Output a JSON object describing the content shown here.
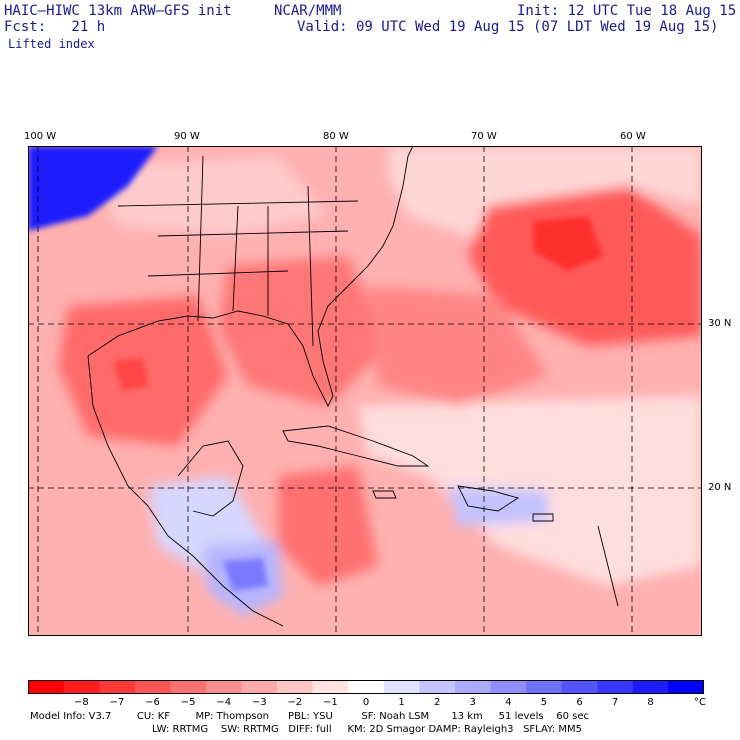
{
  "header": {
    "model": "HAIC–HIWC 13km ARW–GFS init",
    "org": "NCAR/MMM",
    "init": "Init: 12 UTC Tue 18 Aug 15",
    "fcst": "Fcst:   21 h",
    "valid": "Valid: 09 UTC Wed 19 Aug 15 (07 LDT Wed 19 Aug 15)",
    "field": "Lifted index"
  },
  "axes": {
    "lon_labels": [
      "100 W",
      "90 W",
      "80 W",
      "70 W",
      "60 W"
    ],
    "lat_labels": [
      "30 N",
      "20 N"
    ]
  },
  "colorbar": {
    "labels": [
      "−8",
      "−7",
      "−6",
      "−5",
      "−4",
      "−3",
      "−2",
      "−1",
      "0",
      "1",
      "2",
      "3",
      "4",
      "5",
      "6",
      "7",
      "8"
    ],
    "unit": "°C",
    "colors": [
      "#ff0000",
      "#ff1c1c",
      "#ff3838",
      "#ff5555",
      "#ff7171",
      "#ff8e8e",
      "#ffaaaa",
      "#ffc6c6",
      "#ffe3e3",
      "#ffffff",
      "#e3e3ff",
      "#c6c6ff",
      "#aaaaff",
      "#8e8eff",
      "#7171ff",
      "#5555ff",
      "#3838ff",
      "#1c1cff",
      "#0000ff"
    ]
  },
  "model_info": {
    "line1": "Model Info: V3.7        CU: KF        MP: Thompson      PBL: YSU         SF: Noah LSM       13 km     51 levels    60 sec",
    "line2": "LW: RRTMG    SW: RRTMG   DIFF: full     KM: 2D Smagor DAMP: Rayleigh3   SFLAY: MM5"
  },
  "map_colors": {
    "ocean_base": "#ffb3b3",
    "strong_neg": "#ff4d4d",
    "mid_neg": "#ff7a7a",
    "near_zero": "#ffe0e0",
    "positive": "#c8c8ff",
    "strong_pos": "#2a2aff",
    "border": "#000000"
  }
}
